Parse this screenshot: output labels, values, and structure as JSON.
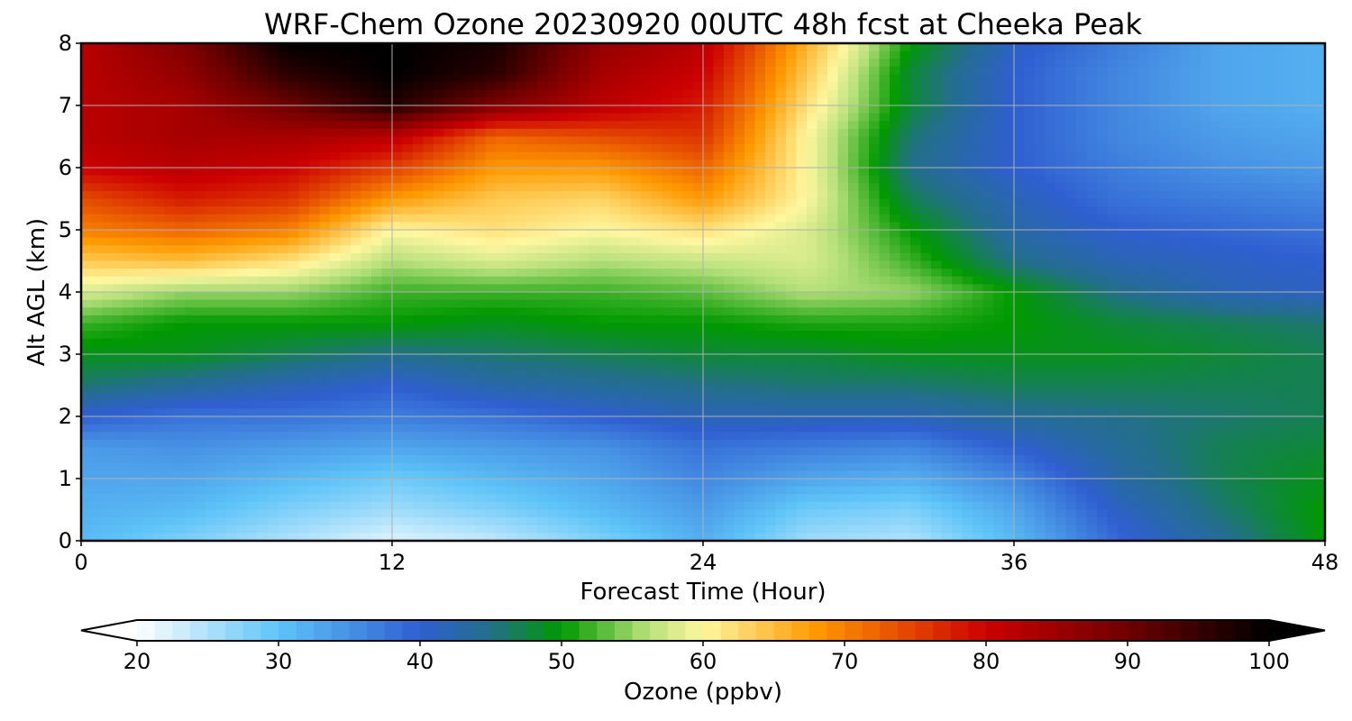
{
  "chart_data": {
    "type": "heatmap",
    "title": "WRF-Chem Ozone  20230920 00UTC 48h fcst at Cheeka Peak",
    "xlabel": "Forecast Time (Hour)",
    "ylabel": "Alt AGL (km)",
    "xlim": [
      0,
      48
    ],
    "ylim": [
      0,
      8
    ],
    "x_ticks": [
      "0",
      "12",
      "24",
      "36",
      "48"
    ],
    "y_ticks": [
      "0",
      "1",
      "2",
      "3",
      "4",
      "5",
      "6",
      "7",
      "8"
    ],
    "grid": true,
    "colorbar": {
      "label": "Ozone  (ppbv)",
      "range": [
        20,
        100
      ],
      "ticks": [
        "20",
        "30",
        "40",
        "50",
        "60",
        "70",
        "80",
        "90",
        "100"
      ],
      "extend": "both",
      "stops": [
        {
          "value": 20,
          "color": "#ffffff"
        },
        {
          "value": 30,
          "color": "#5ec4f8"
        },
        {
          "value": 40,
          "color": "#2f5fd0"
        },
        {
          "value": 45,
          "color": "#236f8a"
        },
        {
          "value": 50,
          "color": "#009900"
        },
        {
          "value": 56,
          "color": "#b5e07a"
        },
        {
          "value": 60,
          "color": "#fff7a0"
        },
        {
          "value": 68,
          "color": "#ff9900"
        },
        {
          "value": 80,
          "color": "#cc0000"
        },
        {
          "value": 90,
          "color": "#6e0000"
        },
        {
          "value": 100,
          "color": "#000000"
        }
      ]
    },
    "x_hours": [
      0,
      4,
      8,
      12,
      16,
      20,
      24,
      28,
      32,
      36,
      40,
      44,
      48
    ],
    "altitudes_km": [
      0,
      0.5,
      1,
      1.5,
      2,
      2.5,
      3,
      3.5,
      4,
      4.5,
      5,
      5.5,
      6,
      6.5,
      7,
      7.5,
      8
    ],
    "values_ppbv": [
      [
        31,
        28,
        25,
        22,
        24,
        28,
        32,
        26,
        25,
        31,
        39,
        44,
        50
      ],
      [
        32,
        31,
        28,
        26,
        28,
        31,
        34,
        29,
        28,
        33,
        41,
        46,
        50
      ],
      [
        33,
        33,
        31,
        29,
        31,
        33,
        36,
        33,
        32,
        36,
        43,
        47,
        49
      ],
      [
        34,
        35,
        34,
        33,
        34,
        35,
        38,
        37,
        36,
        40,
        44,
        47,
        48
      ],
      [
        40,
        38,
        38,
        37,
        38,
        40,
        42,
        42,
        42,
        44,
        45,
        46,
        47
      ],
      [
        46,
        44,
        42,
        40,
        43,
        44,
        45,
        46,
        46,
        47,
        47,
        47,
        47
      ],
      [
        49,
        49,
        47,
        45,
        46,
        47,
        48,
        48,
        49,
        49,
        49,
        48,
        47
      ],
      [
        52,
        50,
        50,
        50,
        49,
        50,
        50,
        51,
        51,
        50,
        48,
        47,
        46
      ],
      [
        58,
        55,
        55,
        52,
        52,
        52,
        53,
        56,
        55,
        50,
        45,
        42,
        41
      ],
      [
        64,
        65,
        62,
        56,
        58,
        56,
        57,
        58,
        52,
        45,
        42,
        41,
        40
      ],
      [
        70,
        72,
        70,
        60,
        62,
        60,
        62,
        58,
        50,
        43,
        40,
        39,
        38
      ],
      [
        74,
        78,
        76,
        68,
        64,
        63,
        68,
        60,
        47,
        42,
        38,
        37,
        36
      ],
      [
        80,
        82,
        80,
        75,
        68,
        68,
        72,
        60,
        45,
        40,
        37,
        35,
        34
      ],
      [
        82,
        84,
        84,
        82,
        72,
        74,
        76,
        60,
        46,
        40,
        36,
        34,
        33
      ],
      [
        82,
        84,
        90,
        97,
        88,
        82,
        78,
        62,
        48,
        40,
        36,
        33,
        32
      ],
      [
        82,
        86,
        96,
        100,
        96,
        84,
        80,
        64,
        48,
        40,
        36,
        33,
        32
      ],
      [
        82,
        88,
        100,
        100,
        98,
        86,
        82,
        66,
        50,
        41,
        37,
        33,
        32
      ]
    ]
  }
}
